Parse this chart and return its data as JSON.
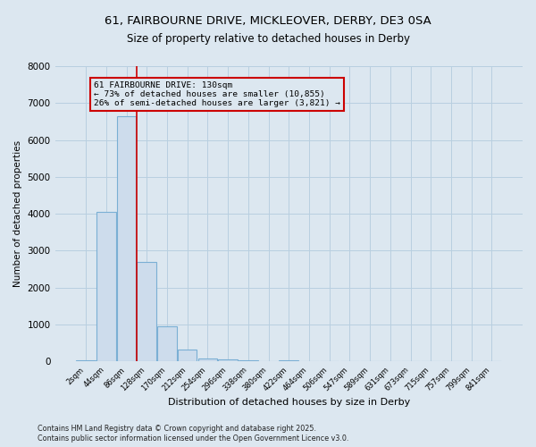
{
  "title1": "61, FAIRBOURNE DRIVE, MICKLEOVER, DERBY, DE3 0SA",
  "title2": "Size of property relative to detached houses in Derby",
  "xlabel": "Distribution of detached houses by size in Derby",
  "ylabel": "Number of detached properties",
  "categories": [
    "2sqm",
    "44sqm",
    "86sqm",
    "128sqm",
    "170sqm",
    "212sqm",
    "254sqm",
    "296sqm",
    "338sqm",
    "380sqm",
    "422sqm",
    "464sqm",
    "506sqm",
    "547sqm",
    "589sqm",
    "631sqm",
    "673sqm",
    "715sqm",
    "757sqm",
    "799sqm",
    "841sqm"
  ],
  "values": [
    30,
    4050,
    6650,
    2700,
    950,
    320,
    80,
    50,
    30,
    0,
    30,
    0,
    0,
    0,
    0,
    0,
    0,
    0,
    0,
    0,
    0
  ],
  "bar_color": "#cddcec",
  "bar_edge_color": "#7aafd4",
  "vline_x_index": 2.5,
  "vline_color": "#cc0000",
  "annotation_line1": "61 FAIRBOURNE DRIVE: 130sqm",
  "annotation_line2": "← 73% of detached houses are smaller (10,855)",
  "annotation_line3": "26% of semi-detached houses are larger (3,821) →",
  "annotation_box_color": "#cc0000",
  "annotation_text_color": "#000000",
  "ylim": [
    0,
    8000
  ],
  "yticks": [
    0,
    1000,
    2000,
    3000,
    4000,
    5000,
    6000,
    7000,
    8000
  ],
  "grid_color": "#b8cfe0",
  "background_color": "#dce7f0",
  "footer_text1": "Contains HM Land Registry data © Crown copyright and database right 2025.",
  "footer_text2": "Contains public sector information licensed under the Open Government Licence v3.0."
}
